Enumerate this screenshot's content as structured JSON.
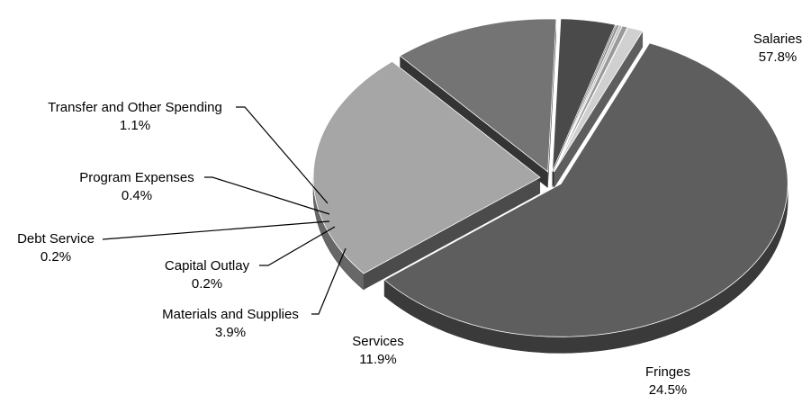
{
  "chart_data": {
    "type": "pie",
    "style": "3d-exploded",
    "title": "",
    "slices": [
      {
        "name": "Salaries",
        "value_label": "57.8%",
        "value": 57.8,
        "color": "#5e5e5e"
      },
      {
        "name": "Fringes",
        "value_label": "24.5%",
        "value": 24.5,
        "color": "#a6a6a6"
      },
      {
        "name": "Services",
        "value_label": "11.9%",
        "value": 11.9,
        "color": "#747474"
      },
      {
        "name": "Materials and Supplies",
        "value_label": "3.9%",
        "value": 3.9,
        "color": "#4a4a4a"
      },
      {
        "name": "Capital Outlay",
        "value_label": "0.2%",
        "value": 0.2,
        "color": "#909090"
      },
      {
        "name": "Debt Service",
        "value_label": "0.2%",
        "value": 0.2,
        "color": "#bdbdbd"
      },
      {
        "name": "Program Expenses",
        "value_label": "0.4%",
        "value": 0.4,
        "color": "#9a9a9a"
      },
      {
        "name": "Transfer and Other Spending",
        "value_label": "1.1%",
        "value": 1.1,
        "color": "#d0d0d0"
      }
    ],
    "legend": "none"
  }
}
